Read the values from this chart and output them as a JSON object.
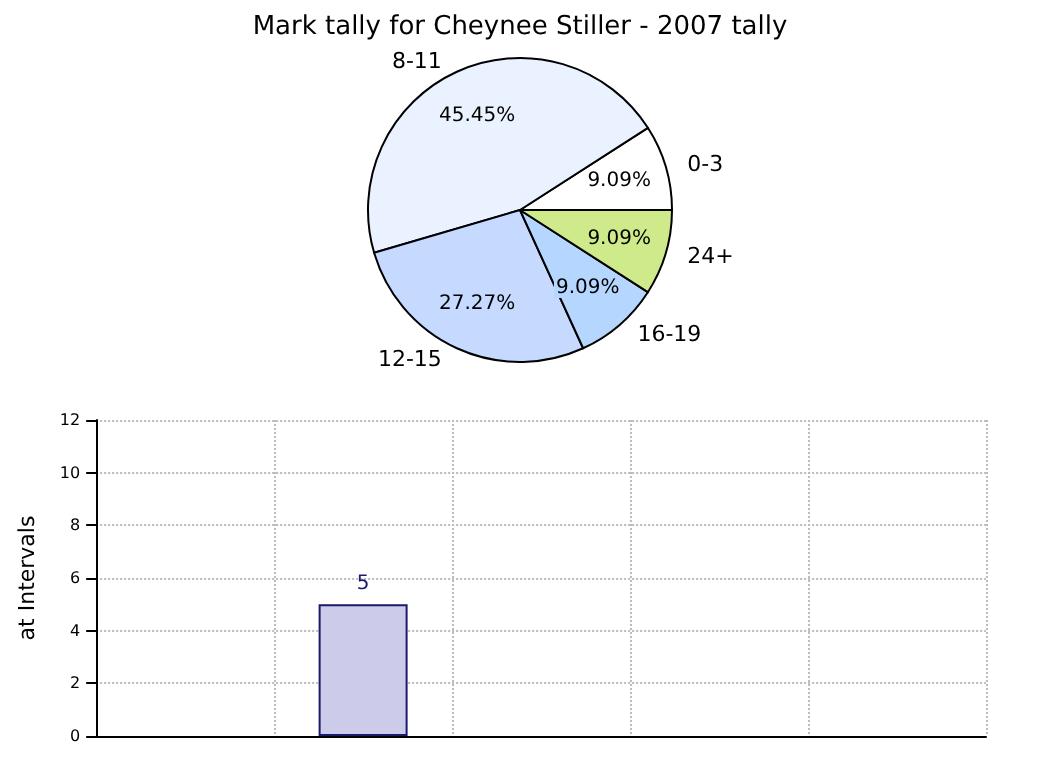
{
  "chart_data": [
    {
      "type": "pie",
      "title": "Mark tally for Cheynee Stiller - 2007 tally",
      "categories": [
        "0-3",
        "8-11",
        "12-15",
        "16-19",
        "24+"
      ],
      "values": [
        9.09,
        45.45,
        27.27,
        9.09,
        9.09
      ],
      "colors": [
        "#ffffff",
        "#ebf2ff",
        "#c6d9ff",
        "#b5d6ff",
        "#cfea8b"
      ],
      "value_labels": [
        "9.09%",
        "45.45%",
        "27.27%",
        "9.09%",
        "9.09%"
      ]
    },
    {
      "type": "bar",
      "ylabel": "at Intervals",
      "categories": [
        null,
        null,
        null,
        null,
        null
      ],
      "values": [
        null,
        5,
        null,
        null,
        null
      ],
      "color": "#ccccea",
      "ylim": [
        0,
        12
      ],
      "yticks": [
        0,
        2,
        4,
        6,
        8,
        10,
        12
      ],
      "grid": true,
      "data_labels": true
    }
  ]
}
